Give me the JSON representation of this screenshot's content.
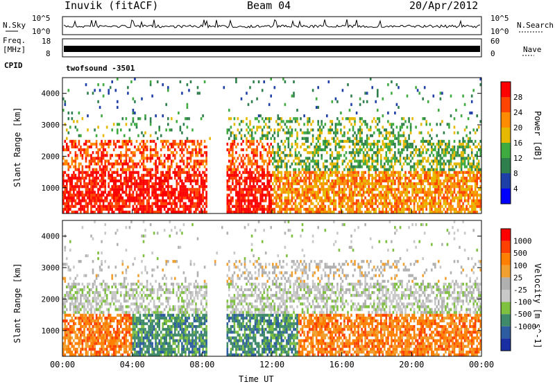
{
  "header": {
    "station": "Inuvik (fitACF)",
    "beam": "Beam 04",
    "date": "20/Apr/2012"
  },
  "top_panels": {
    "nsky_label": "N.Sky",
    "nsky_ticks": [
      "10^5",
      "10^0"
    ],
    "nsearch_label": "N.Search",
    "freq_label_1": "Freq.",
    "freq_label_2": "[MHz]",
    "freq_ticks": [
      "18",
      "8"
    ],
    "nave_label": "Nave",
    "nave_ticks": [
      "60",
      "0"
    ],
    "cpid_label": "CPID",
    "cpid_value": "twofsound -3501"
  },
  "colors": {
    "power_scale": [
      "#0000ff",
      "#1e3fa8",
      "#2f7f4c",
      "#3faa3f",
      "#e6b800",
      "#ff8c00",
      "#ff4500",
      "#ff0000"
    ],
    "velocity_scale": [
      "#1a2ea3",
      "#2e5ca0",
      "#3f8a6a",
      "#7fc040",
      "#c8c8c8",
      "#b0b0b0",
      "#f0a030",
      "#ff7f00",
      "#ff4000",
      "#ff0000"
    ]
  },
  "chart_data": [
    {
      "type": "heatmap",
      "name": "power",
      "ylabel": "Slant Range [km]",
      "xlabel": "Time UT",
      "x_ticks": [
        "00:00",
        "04:00",
        "08:00",
        "12:00",
        "16:00",
        "20:00",
        "00:00"
      ],
      "y_ticks": [
        1000,
        2000,
        3000,
        4000
      ],
      "ylim": [
        180,
        4500
      ],
      "xlim_hours": [
        0,
        24
      ],
      "colorbar_label": "Power [dB]",
      "colorbar_ticks": [
        28,
        24,
        20,
        16,
        12,
        8,
        4
      ],
      "colorbar_range": [
        0,
        32
      ]
    },
    {
      "type": "heatmap",
      "name": "velocity",
      "ylabel": "Slant Range [km]",
      "xlabel": "Time UT",
      "x_ticks": [
        "00:00",
        "04:00",
        "08:00",
        "12:00",
        "16:00",
        "20:00",
        "00:00"
      ],
      "y_ticks": [
        1000,
        2000,
        3000,
        4000
      ],
      "ylim": [
        180,
        4500
      ],
      "xlim_hours": [
        0,
        24
      ],
      "colorbar_label": "Velocity [m s^-1]",
      "colorbar_ticks": [
        1000,
        500,
        100,
        25,
        -25,
        -100,
        -500,
        -1000
      ]
    }
  ]
}
